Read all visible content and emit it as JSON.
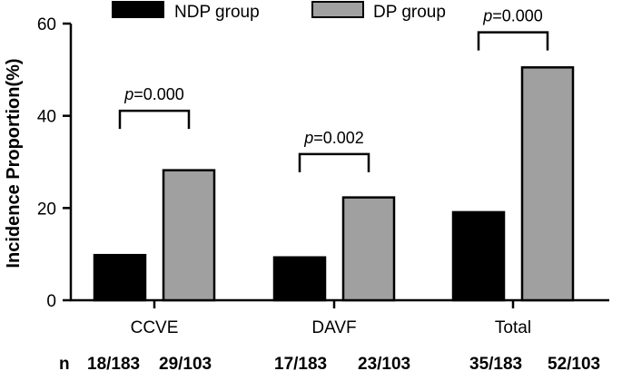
{
  "chart_data": {
    "type": "bar",
    "title": "",
    "xlabel": "",
    "ylabel": "Incidence Proportion(%)",
    "ylim": [
      0,
      60
    ],
    "yticks": [
      0,
      20,
      40,
      60
    ],
    "categories": [
      "CCVE",
      "DAVF",
      "Total"
    ],
    "series": [
      {
        "name": "NDP group",
        "color": "#000000",
        "values": [
          9.8,
          9.3,
          19.1
        ]
      },
      {
        "name": "DP group",
        "color": "#a0a0a0",
        "values": [
          28.2,
          22.3,
          50.5
        ]
      }
    ],
    "legend_position": "top",
    "annotations": [
      {
        "category": "CCVE",
        "p_symbol": "p",
        "p_value": "=0.000"
      },
      {
        "category": "DAVF",
        "p_symbol": "p",
        "p_value": "=0.002"
      },
      {
        "category": "Total",
        "p_symbol": "p",
        "p_value": "=0.000"
      }
    ],
    "n_row": {
      "label": "n",
      "values": [
        [
          "18/183",
          "29/103"
        ],
        [
          "17/183",
          "23/103"
        ],
        [
          "35/183",
          "52/103"
        ]
      ]
    }
  }
}
